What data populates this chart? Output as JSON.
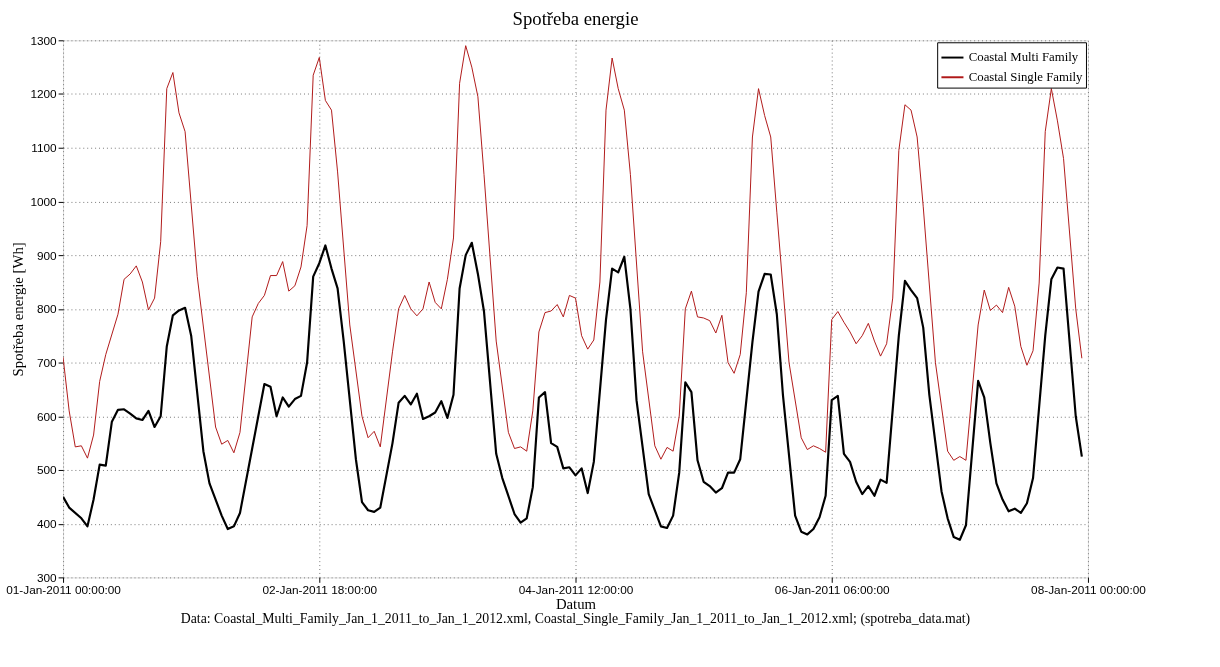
{
  "chart_data": {
    "type": "line",
    "title": "Spotřeba energie",
    "xlabel": "Datum",
    "ylabel": "Spotřeba energie [Wh]",
    "annotations": [
      "Data: Coastal_Multi_Family_Jan_1_2011_to_Jan_1_2012.xml, Coastal_Single_Family_Jan_1_2011_to_Jan_1_2012.xml; (spotreba_data.mat)"
    ],
    "xlim": [
      "2011-01-01T00:00",
      "2011-01-08T00:00"
    ],
    "xticks": [
      {
        "value": "2011-01-01T00:00",
        "label": "01-Jan-2011 00:00:00"
      },
      {
        "value": "2011-01-02T18:00",
        "label": "02-Jan-2011 18:00:00"
      },
      {
        "value": "2011-01-04T12:00",
        "label": "04-Jan-2011 12:00:00"
      },
      {
        "value": "2011-01-06T06:00",
        "label": "06-Jan-2011 06:00:00"
      },
      {
        "value": "2011-01-08T00:00",
        "label": "08-Jan-2011 00:00:00"
      }
    ],
    "ylim": [
      300,
      1300
    ],
    "yticks": [
      300,
      400,
      500,
      600,
      700,
      800,
      900,
      1000,
      1100,
      1200,
      1300
    ],
    "grid": true,
    "legend": "top right",
    "line_style": "solid",
    "series": [
      {
        "name": "Coastal Multi Family",
        "color": "#000000",
        "x": [
          "2011-01-01T00:00",
          "2011-01-01T01:00",
          "2011-01-01T03:00",
          "2011-01-01T04:00",
          "2011-01-01T05:00",
          "2011-01-01T06:00",
          "2011-01-01T07:00",
          "2011-01-01T08:00",
          "2011-01-01T09:00",
          "2011-01-01T10:00",
          "2011-01-01T11:00",
          "2011-01-01T12:00",
          "2011-01-01T13:00",
          "2011-01-01T14:00",
          "2011-01-01T15:00",
          "2011-01-01T16:00",
          "2011-01-01T17:00",
          "2011-01-01T18:00",
          "2011-01-01T19:00",
          "2011-01-01T20:00",
          "2011-01-01T21:00",
          "2011-01-01T23:00",
          "2011-01-02T00:00",
          "2011-01-02T02:00",
          "2011-01-02T03:00",
          "2011-01-02T04:00",
          "2011-01-02T05:00",
          "2011-01-02T07:00",
          "2011-01-02T08:00",
          "2011-01-02T09:00",
          "2011-01-02T10:00",
          "2011-01-02T11:00",
          "2011-01-02T12:00",
          "2011-01-02T13:00",
          "2011-01-02T14:00",
          "2011-01-02T15:00",
          "2011-01-02T16:00",
          "2011-01-02T17:00",
          "2011-01-02T18:00",
          "2011-01-02T19:00",
          "2011-01-02T20:00",
          "2011-01-02T21:00",
          "2011-01-02T22:00",
          "2011-01-03T00:00",
          "2011-01-03T01:00",
          "2011-01-03T02:00",
          "2011-01-03T03:00",
          "2011-01-03T04:00",
          "2011-01-03T06:00",
          "2011-01-03T07:00",
          "2011-01-03T08:00",
          "2011-01-03T09:00",
          "2011-01-03T10:00",
          "2011-01-03T11:00",
          "2011-01-03T12:00",
          "2011-01-03T13:00",
          "2011-01-03T14:00",
          "2011-01-03T15:00",
          "2011-01-03T16:00",
          "2011-01-03T17:00",
          "2011-01-03T18:00",
          "2011-01-03T19:00",
          "2011-01-03T20:00",
          "2011-01-03T21:00",
          "2011-01-03T23:00",
          "2011-01-04T00:00",
          "2011-01-04T02:00",
          "2011-01-04T03:00",
          "2011-01-04T04:00",
          "2011-01-04T05:00",
          "2011-01-04T06:00",
          "2011-01-04T07:00",
          "2011-01-04T08:00",
          "2011-01-04T09:00",
          "2011-01-04T10:00",
          "2011-01-04T11:00",
          "2011-01-04T12:00",
          "2011-01-04T13:00",
          "2011-01-04T14:00",
          "2011-01-04T15:00",
          "2011-01-04T17:00",
          "2011-01-04T18:00",
          "2011-01-04T19:00",
          "2011-01-04T20:00",
          "2011-01-04T21:00",
          "2011-01-04T22:00",
          "2011-01-05T00:00",
          "2011-01-05T02:00",
          "2011-01-05T03:00",
          "2011-01-05T04:00",
          "2011-01-05T05:00",
          "2011-01-05T06:00",
          "2011-01-05T07:00",
          "2011-01-05T08:00",
          "2011-01-05T09:00",
          "2011-01-05T10:00",
          "2011-01-05T11:00",
          "2011-01-05T12:00",
          "2011-01-05T13:00",
          "2011-01-05T14:00",
          "2011-01-05T15:00",
          "2011-01-05T17:00",
          "2011-01-05T18:00",
          "2011-01-05T19:00",
          "2011-01-05T20:00",
          "2011-01-05T21:00",
          "2011-01-05T22:00",
          "2011-01-06T00:00",
          "2011-01-06T01:00",
          "2011-01-06T02:00",
          "2011-01-06T03:00",
          "2011-01-06T04:00",
          "2011-01-06T05:00",
          "2011-01-06T06:00",
          "2011-01-06T07:00",
          "2011-01-06T08:00",
          "2011-01-06T09:00",
          "2011-01-06T10:00",
          "2011-01-06T11:00",
          "2011-01-06T12:00",
          "2011-01-06T13:00",
          "2011-01-06T14:00",
          "2011-01-06T15:00",
          "2011-01-06T17:00",
          "2011-01-06T18:00",
          "2011-01-06T19:00",
          "2011-01-06T20:00",
          "2011-01-06T21:00",
          "2011-01-06T22:00",
          "2011-01-07T00:00",
          "2011-01-07T01:00",
          "2011-01-07T02:00",
          "2011-01-07T03:00",
          "2011-01-07T04:00",
          "2011-01-07T06:00",
          "2011-01-07T07:00",
          "2011-01-07T08:00",
          "2011-01-07T09:00",
          "2011-01-07T10:00",
          "2011-01-07T11:00",
          "2011-01-07T12:00",
          "2011-01-07T13:00",
          "2011-01-07T14:00",
          "2011-01-07T15:00",
          "2011-01-07T17:00",
          "2011-01-07T18:00",
          "2011-01-07T19:00",
          "2011-01-07T20:00",
          "2011-01-07T22:00",
          "2011-01-07T23:00"
        ],
        "values": [
          450,
          430,
          410,
          395,
          445,
          510,
          508,
          590,
          612,
          613,
          605,
          596,
          593,
          610,
          580,
          600,
          730,
          788,
          797,
          802,
          750,
          535,
          475,
          415,
          390,
          395,
          420,
          540,
          600,
          660,
          655,
          600,
          635,
          618,
          632,
          638,
          700,
          860,
          885,
          918,
          875,
          838,
          740,
          520,
          440,
          425,
          422,
          430,
          550,
          625,
          638,
          622,
          642,
          595,
          600,
          607,
          628,
          597,
          640,
          838,
          900,
          923,
          865,
          795,
          530,
          485,
          418,
          402,
          410,
          468,
          635,
          645,
          550,
          543,
          503,
          505,
          490,
          503,
          457,
          515,
          780,
          875,
          868,
          897,
          800,
          630,
          455,
          395,
          392,
          415,
          495,
          663,
          645,
          518,
          478,
          470,
          458,
          466,
          495,
          495,
          520,
          738,
          832,
          865,
          864,
          790,
          640,
          415,
          385,
          380,
          390,
          412,
          452,
          630,
          638,
          530,
          515,
          478,
          455,
          470,
          452,
          482,
          476,
          750,
          852,
          835,
          820,
          765,
          640,
          460,
          410,
          375,
          370,
          397,
          666,
          635,
          550,
          475,
          445,
          423,
          428,
          420,
          438,
          485,
          750,
          855,
          877,
          875,
          600,
          525
        ]
      },
      {
        "name": "Coastal Single Family",
        "color": "#b01818",
        "x": [
          "2011-01-01T00:00",
          "2011-01-01T01:00",
          "2011-01-01T02:00",
          "2011-01-01T03:00",
          "2011-01-01T04:00",
          "2011-01-01T05:00",
          "2011-01-01T06:00",
          "2011-01-01T07:00",
          "2011-01-01T09:00",
          "2011-01-01T10:00",
          "2011-01-01T11:00",
          "2011-01-01T12:00",
          "2011-01-01T13:00",
          "2011-01-01T14:00",
          "2011-01-01T15:00",
          "2011-01-01T16:00",
          "2011-01-01T17:00",
          "2011-01-01T18:00",
          "2011-01-01T19:00",
          "2011-01-01T20:00",
          "2011-01-01T22:00",
          "2011-01-02T01:00",
          "2011-01-02T02:00",
          "2011-01-02T03:00",
          "2011-01-02T04:00",
          "2011-01-02T05:00",
          "2011-01-02T07:00",
          "2011-01-02T08:00",
          "2011-01-02T09:00",
          "2011-01-02T10:00",
          "2011-01-02T11:00",
          "2011-01-02T12:00",
          "2011-01-02T13:00",
          "2011-01-02T14:00",
          "2011-01-02T15:00",
          "2011-01-02T16:00",
          "2011-01-02T17:00",
          "2011-01-02T18:00",
          "2011-01-02T19:00",
          "2011-01-02T20:00",
          "2011-01-02T21:00",
          "2011-01-02T23:00",
          "2011-01-03T01:00",
          "2011-01-03T02:00",
          "2011-01-03T03:00",
          "2011-01-03T04:00",
          "2011-01-03T06:00",
          "2011-01-03T07:00",
          "2011-01-03T08:00",
          "2011-01-03T09:00",
          "2011-01-03T10:00",
          "2011-01-03T11:00",
          "2011-01-03T12:00",
          "2011-01-03T13:00",
          "2011-01-03T14:00",
          "2011-01-03T15:00",
          "2011-01-03T16:00",
          "2011-01-03T17:00",
          "2011-01-03T18:00",
          "2011-01-03T19:00",
          "2011-01-03T20:00",
          "2011-01-03T21:00",
          "2011-01-03T23:00",
          "2011-01-04T01:00",
          "2011-01-04T02:00",
          "2011-01-04T03:00",
          "2011-01-04T04:00",
          "2011-01-04T05:00",
          "2011-01-04T06:00",
          "2011-01-04T07:00",
          "2011-01-04T08:00",
          "2011-01-04T09:00",
          "2011-01-04T10:00",
          "2011-01-04T11:00",
          "2011-01-04T12:00",
          "2011-01-04T13:00",
          "2011-01-04T14:00",
          "2011-01-04T15:00",
          "2011-01-04T16:00",
          "2011-01-04T17:00",
          "2011-01-04T18:00",
          "2011-01-04T19:00",
          "2011-01-04T20:00",
          "2011-01-04T21:00",
          "2011-01-04T23:00",
          "2011-01-05T01:00",
          "2011-01-05T02:00",
          "2011-01-05T03:00",
          "2011-01-05T04:00",
          "2011-01-05T05:00",
          "2011-01-05T06:00",
          "2011-01-05T07:00",
          "2011-01-05T08:00",
          "2011-01-05T09:00",
          "2011-01-05T10:00",
          "2011-01-05T11:00",
          "2011-01-05T12:00",
          "2011-01-05T13:00",
          "2011-01-05T14:00",
          "2011-01-05T15:00",
          "2011-01-05T16:00",
          "2011-01-05T17:00",
          "2011-01-05T18:00",
          "2011-01-05T19:00",
          "2011-01-05T20:00",
          "2011-01-05T21:00",
          "2011-01-05T23:00",
          "2011-01-06T01:00",
          "2011-01-06T02:00",
          "2011-01-06T03:00",
          "2011-01-06T04:00",
          "2011-01-06T05:00",
          "2011-01-06T06:00",
          "2011-01-06T07:00",
          "2011-01-06T08:00",
          "2011-01-06T09:00",
          "2011-01-06T10:00",
          "2011-01-06T11:00",
          "2011-01-06T12:00",
          "2011-01-06T13:00",
          "2011-01-06T14:00",
          "2011-01-06T15:00",
          "2011-01-06T16:00",
          "2011-01-06T17:00",
          "2011-01-06T18:00",
          "2011-01-06T19:00",
          "2011-01-06T20:00",
          "2011-01-06T21:00",
          "2011-01-06T23:00",
          "2011-01-07T01:00",
          "2011-01-07T02:00",
          "2011-01-07T03:00",
          "2011-01-07T04:00",
          "2011-01-07T06:00",
          "2011-01-07T07:00",
          "2011-01-07T08:00",
          "2011-01-07T09:00",
          "2011-01-07T10:00",
          "2011-01-07T11:00",
          "2011-01-07T12:00",
          "2011-01-07T13:00",
          "2011-01-07T14:00",
          "2011-01-07T15:00",
          "2011-01-07T16:00",
          "2011-01-07T17:00",
          "2011-01-07T18:00",
          "2011-01-07T19:00",
          "2011-01-07T20:00",
          "2011-01-07T22:00",
          "2011-01-07T23:00"
        ],
        "values": [
          710,
          610,
          543,
          545,
          522,
          565,
          665,
          715,
          790,
          855,
          865,
          880,
          850,
          798,
          820,
          925,
          1210,
          1240,
          1165,
          1130,
          860,
          580,
          548,
          555,
          532,
          570,
          785,
          810,
          825,
          862,
          862,
          888,
          833,
          843,
          878,
          955,
          1235,
          1268,
          1188,
          1170,
          1055,
          770,
          600,
          560,
          572,
          543,
          720,
          800,
          825,
          800,
          787,
          800,
          850,
          812,
          800,
          855,
          932,
          1220,
          1290,
          1250,
          1195,
          1050,
          740,
          570,
          540,
          543,
          535,
          610,
          757,
          793,
          796,
          808,
          785,
          825,
          820,
          750,
          725,
          742,
          850,
          1170,
          1267,
          1210,
          1170,
          1050,
          720,
          545,
          520,
          542,
          535,
          600,
          800,
          833,
          785,
          783,
          778,
          755,
          788,
          700,
          680,
          715,
          830,
          1120,
          1210,
          1160,
          1120,
          980,
          700,
          560,
          538,
          545,
          540,
          533,
          780,
          795,
          775,
          757,
          735,
          750,
          773,
          740,
          712,
          735,
          820,
          1095,
          1180,
          1170,
          1120,
          990,
          700,
          535,
          518,
          525,
          518,
          770,
          835,
          797,
          807,
          793,
          840,
          805,
          730,
          695,
          722,
          848,
          1130,
          1210,
          1150,
          1080,
          800,
          708
        ]
      }
    ]
  }
}
